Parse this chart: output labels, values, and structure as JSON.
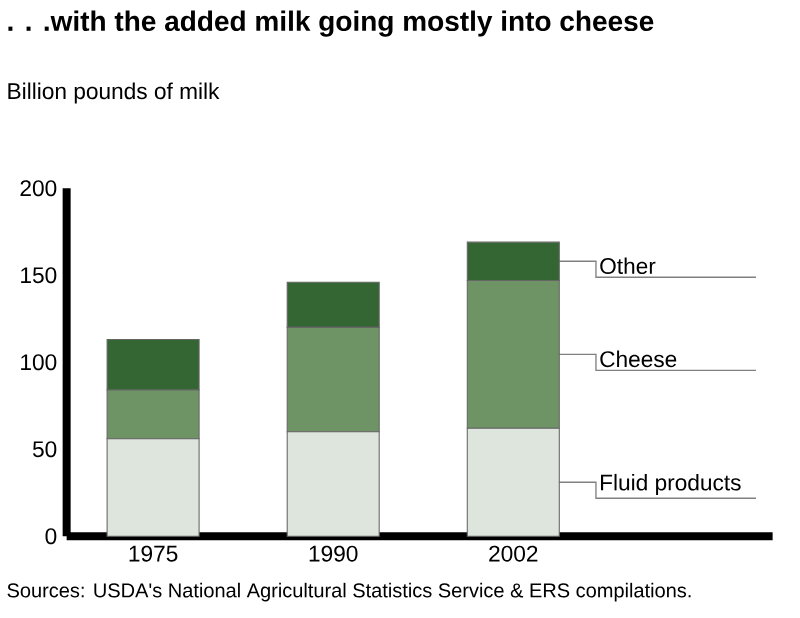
{
  "chart_data": {
    "type": "bar",
    "stacked": true,
    "title": ". . .with the added milk going mostly into cheese",
    "ylabel": "Billion pounds of milk",
    "categories": [
      "1975",
      "1990",
      "2002"
    ],
    "series": [
      {
        "name": "Fluid products",
        "color": "#dde5dc",
        "values": [
          56,
          60,
          62
        ]
      },
      {
        "name": "Cheese",
        "color": "#6e9466",
        "values": [
          28,
          60,
          85
        ]
      },
      {
        "name": "Other",
        "color": "#336633",
        "values": [
          29,
          26,
          22
        ]
      }
    ],
    "ylim": [
      0,
      200
    ],
    "yticks": [
      0,
      50,
      100,
      150,
      200
    ],
    "annotations": [
      "Sources: USDA's National Agricultural Statistics Service & ERS compilations."
    ]
  }
}
